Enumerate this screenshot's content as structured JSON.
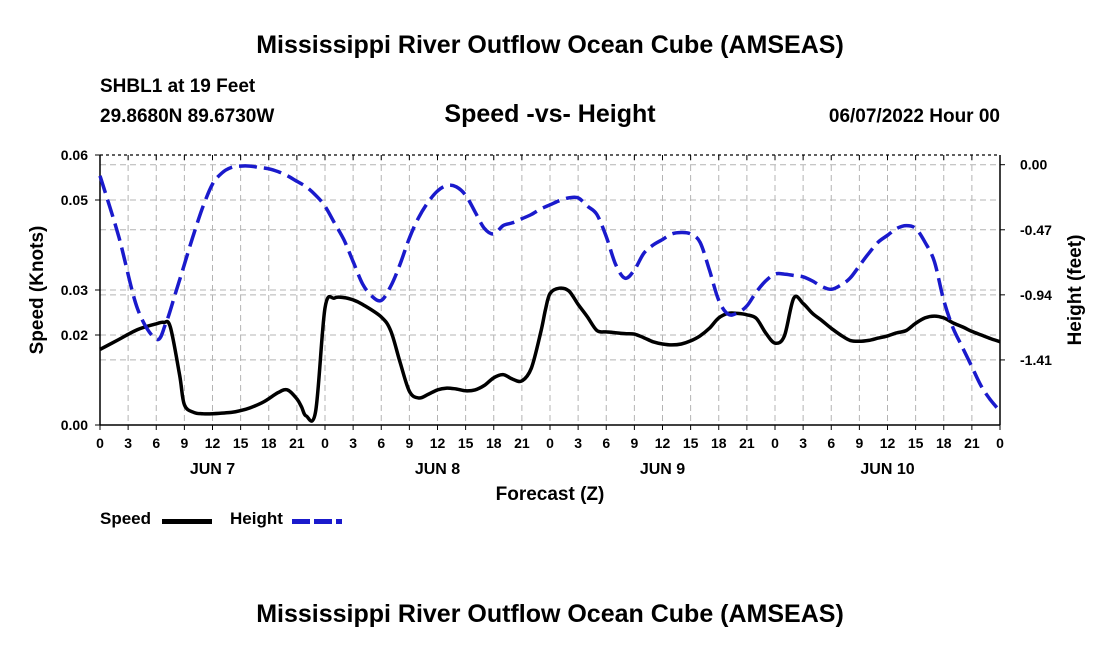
{
  "header": {
    "title": "Mississippi River Outflow Ocean Cube (AMSEAS)",
    "station": "SHBL1 at 19 Feet",
    "coords": "29.8680N  89.6730W",
    "subtitle": "Speed -vs- Height",
    "datetime": "06/07/2022 Hour 00"
  },
  "footer": {
    "title": "Mississippi River Outflow Ocean Cube (AMSEAS)"
  },
  "legend": {
    "speed_label": "Speed",
    "height_label": "Height"
  },
  "colors": {
    "speed": "#000000",
    "height": "#1a1acc",
    "grid": "#b4b4b4"
  },
  "chart_data": {
    "type": "line",
    "title": "Speed -vs- Height",
    "xlabel": "Forecast (Z)",
    "ylabel_left": "Speed (Knots)",
    "ylabel_right": "Height (feet)",
    "xlim": [
      0,
      96
    ],
    "x_ticks": [
      0,
      3,
      6,
      9,
      12,
      15,
      18,
      21,
      24,
      27,
      30,
      33,
      36,
      39,
      42,
      45,
      48,
      51,
      54,
      57,
      60,
      63,
      66,
      69,
      72,
      75,
      78,
      81,
      84,
      87,
      90,
      93,
      96
    ],
    "x_tick_labels": [
      "0",
      "3",
      "6",
      "9",
      "12",
      "15",
      "18",
      "21",
      "0",
      "3",
      "6",
      "9",
      "12",
      "15",
      "18",
      "21",
      "0",
      "3",
      "6",
      "9",
      "12",
      "15",
      "18",
      "21",
      "0",
      "3",
      "6",
      "9",
      "12",
      "15",
      "18",
      "21",
      "0"
    ],
    "day_labels": [
      {
        "label": "JUN 7",
        "x": 12
      },
      {
        "label": "JUN 8",
        "x": 36
      },
      {
        "label": "JUN 9",
        "x": 60
      },
      {
        "label": "JUN 10",
        "x": 84
      }
    ],
    "ylim_left": [
      0,
      0.06
    ],
    "y_ticks_left": [
      0.0,
      0.02,
      0.03,
      0.05,
      0.06
    ],
    "y_tick_labels_left": [
      "0.00",
      "0.02",
      "0.03",
      "0.05",
      "0.06"
    ],
    "ylim_right": [
      -1.88,
      0.07
    ],
    "y_ticks_right": [
      0.0,
      -0.47,
      -0.94,
      -1.41
    ],
    "y_tick_labels_right": [
      "0.00",
      "-0.47",
      "-0.94",
      "-1.41"
    ],
    "grid": true,
    "series": [
      {
        "name": "Speed",
        "axis": "left",
        "style": "solid",
        "x": [
          0,
          2,
          4,
          6,
          6.8,
          7.5,
          8.5,
          9,
          10,
          11,
          12,
          14,
          15,
          16,
          17.5,
          19,
          20,
          21,
          21.5,
          22,
          23,
          24,
          25,
          26,
          27,
          28,
          30,
          31,
          32,
          33,
          34,
          35,
          36,
          37,
          38,
          39,
          40,
          41,
          42,
          43,
          44,
          45,
          46,
          47,
          47.5,
          48,
          49,
          50,
          51,
          52,
          53,
          54,
          55,
          56,
          57,
          58,
          59,
          60,
          61,
          62,
          63,
          64,
          65,
          66,
          67,
          68,
          69,
          70,
          71,
          72,
          73,
          74,
          75,
          76,
          77,
          78,
          79,
          80,
          81,
          82,
          83,
          84,
          85,
          86,
          87,
          88,
          89,
          90,
          91,
          92,
          93,
          94,
          95,
          96
        ],
        "y": [
          0.0168,
          0.019,
          0.0212,
          0.0225,
          0.0228,
          0.0218,
          0.011,
          0.0045,
          0.0028,
          0.0025,
          0.0025,
          0.0028,
          0.0032,
          0.0038,
          0.0052,
          0.0072,
          0.0078,
          0.0058,
          0.004,
          0.002,
          0.003,
          0.026,
          0.0282,
          0.0283,
          0.0278,
          0.0268,
          0.024,
          0.021,
          0.014,
          0.0075,
          0.006,
          0.0068,
          0.0078,
          0.0082,
          0.008,
          0.0076,
          0.0078,
          0.0088,
          0.0105,
          0.0112,
          0.0102,
          0.0098,
          0.0126,
          0.0205,
          0.0255,
          0.0292,
          0.0304,
          0.0298,
          0.0268,
          0.024,
          0.021,
          0.0207,
          0.0205,
          0.0203,
          0.0202,
          0.0194,
          0.0185,
          0.018,
          0.0178,
          0.018,
          0.0187,
          0.0198,
          0.0215,
          0.0238,
          0.0248,
          0.0248,
          0.0245,
          0.0237,
          0.0205,
          0.0182,
          0.0198,
          0.0282,
          0.027,
          0.0248,
          0.0232,
          0.0215,
          0.02,
          0.0188,
          0.0186,
          0.0188,
          0.0193,
          0.0198,
          0.0205,
          0.021,
          0.0226,
          0.0238,
          0.0242,
          0.0238,
          0.0227,
          0.0218,
          0.0208,
          0.02,
          0.0192,
          0.0185
        ]
      },
      {
        "name": "Height",
        "axis": "right",
        "style": "dashed",
        "x": [
          0,
          2,
          4,
          6,
          7,
          8,
          9,
          10,
          11,
          12,
          13,
          14,
          15,
          16,
          17,
          18,
          19,
          20,
          21,
          22,
          23,
          24,
          25,
          26,
          27,
          28,
          29,
          30,
          31,
          32,
          33,
          34,
          35,
          36,
          37,
          38,
          39,
          40,
          41,
          42,
          43,
          44,
          45,
          46,
          47,
          48,
          49,
          50,
          51,
          52,
          53,
          54,
          55,
          56,
          57,
          58,
          59,
          60,
          61,
          62,
          63,
          64,
          65,
          66,
          67,
          68,
          69,
          70,
          71,
          72,
          73,
          74,
          75,
          76,
          77,
          78,
          79,
          80,
          81,
          82,
          83,
          84,
          85,
          86,
          87,
          88,
          89,
          90,
          91,
          92,
          93,
          94,
          95,
          96
        ],
        "y": [
          -0.08,
          -0.52,
          -1.04,
          -1.26,
          -1.15,
          -0.94,
          -0.72,
          -0.5,
          -0.3,
          -0.14,
          -0.06,
          -0.02,
          -0.01,
          -0.01,
          -0.02,
          -0.03,
          -0.05,
          -0.08,
          -0.12,
          -0.16,
          -0.22,
          -0.3,
          -0.42,
          -0.54,
          -0.7,
          -0.86,
          -0.95,
          -0.98,
          -0.88,
          -0.72,
          -0.53,
          -0.38,
          -0.27,
          -0.19,
          -0.15,
          -0.16,
          -0.22,
          -0.34,
          -0.46,
          -0.5,
          -0.44,
          -0.42,
          -0.39,
          -0.36,
          -0.32,
          -0.29,
          -0.26,
          -0.24,
          -0.24,
          -0.3,
          -0.36,
          -0.52,
          -0.72,
          -0.82,
          -0.76,
          -0.64,
          -0.58,
          -0.54,
          -0.5,
          -0.49,
          -0.5,
          -0.56,
          -0.76,
          -0.98,
          -1.08,
          -1.07,
          -1.02,
          -0.92,
          -0.84,
          -0.79,
          -0.79,
          -0.8,
          -0.81,
          -0.84,
          -0.88,
          -0.9,
          -0.87,
          -0.82,
          -0.73,
          -0.64,
          -0.56,
          -0.51,
          -0.46,
          -0.44,
          -0.46,
          -0.56,
          -0.7,
          -0.98,
          -1.18,
          -1.32,
          -1.46,
          -1.6,
          -1.7,
          -1.78
        ]
      }
    ]
  }
}
